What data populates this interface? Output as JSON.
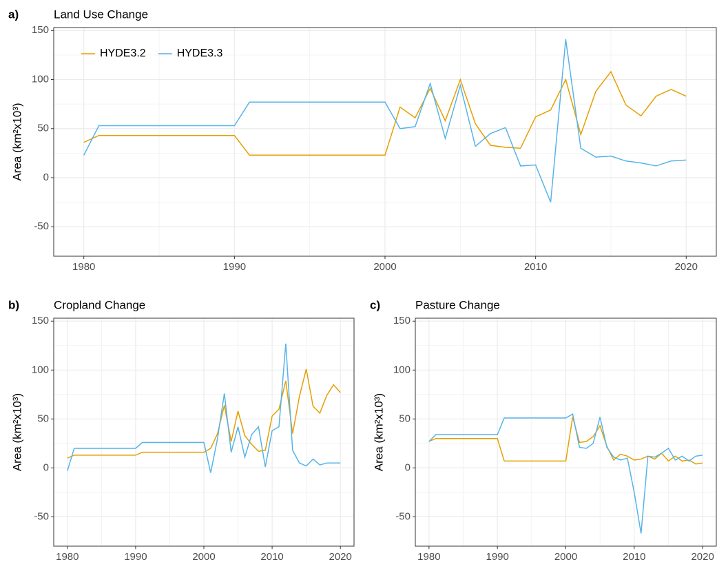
{
  "chart_data": [
    {
      "type": "line",
      "panel_label": "a)",
      "title": "Land Use Change",
      "ylabel": "Area (km²x10³)",
      "x": [
        1980,
        1981,
        1982,
        1983,
        1984,
        1985,
        1986,
        1987,
        1988,
        1989,
        1990,
        1991,
        1992,
        1993,
        1994,
        1995,
        1996,
        1997,
        1998,
        1999,
        2000,
        2001,
        2002,
        2003,
        2004,
        2005,
        2006,
        2007,
        2008,
        2009,
        2010,
        2011,
        2012,
        2013,
        2014,
        2015,
        2016,
        2017,
        2018,
        2019,
        2020
      ],
      "series": [
        {
          "name": "HYDE3.2",
          "color": "#E69F00",
          "values": [
            36,
            43,
            43,
            43,
            43,
            43,
            43,
            43,
            43,
            43,
            43,
            23,
            23,
            23,
            23,
            23,
            23,
            23,
            23,
            23,
            23,
            72,
            61,
            91,
            58,
            100,
            55,
            33,
            31,
            30,
            62,
            69,
            100,
            44,
            88,
            108,
            74,
            63,
            83,
            90,
            83
          ]
        },
        {
          "name": "HYDE3.3",
          "color": "#56B4E9",
          "values": [
            23,
            53,
            53,
            53,
            53,
            53,
            53,
            53,
            53,
            53,
            53,
            77,
            77,
            77,
            77,
            77,
            77,
            77,
            77,
            77,
            77,
            50,
            52,
            96,
            40,
            94,
            32,
            45,
            51,
            12,
            13,
            -25,
            141,
            30,
            21,
            22,
            17,
            15,
            12,
            17,
            18
          ]
        }
      ],
      "xlim": [
        1978,
        2022
      ],
      "xticks": [
        1980,
        1990,
        2000,
        2010,
        2020
      ],
      "ylim": [
        -80,
        153
      ],
      "yticks": [
        -50,
        0,
        50,
        100,
        150
      ],
      "grid": true,
      "legend": "top-left"
    },
    {
      "type": "line",
      "panel_label": "b)",
      "title": "Cropland Change",
      "ylabel": "Area (km²x10³)",
      "x": [
        1980,
        1981,
        1982,
        1983,
        1984,
        1985,
        1986,
        1987,
        1988,
        1989,
        1990,
        1991,
        1992,
        1993,
        1994,
        1995,
        1996,
        1997,
        1998,
        1999,
        2000,
        2001,
        2002,
        2003,
        2004,
        2005,
        2006,
        2007,
        2008,
        2009,
        2010,
        2011,
        2012,
        2013,
        2014,
        2015,
        2016,
        2017,
        2018,
        2019,
        2020
      ],
      "series": [
        {
          "color": "#E69F00",
          "values": [
            10,
            13,
            13,
            13,
            13,
            13,
            13,
            13,
            13,
            13,
            13,
            16,
            16,
            16,
            16,
            16,
            16,
            16,
            16,
            16,
            16,
            20,
            35,
            64,
            27,
            58,
            33,
            24,
            17,
            18,
            53,
            60,
            89,
            35,
            73,
            101,
            63,
            56,
            74,
            85,
            77
          ]
        },
        {
          "color": "#56B4E9",
          "values": [
            -3,
            20,
            20,
            20,
            20,
            20,
            20,
            20,
            20,
            20,
            20,
            26,
            26,
            26,
            26,
            26,
            26,
            26,
            26,
            26,
            26,
            -5,
            30,
            76,
            16,
            42,
            11,
            34,
            42,
            1,
            38,
            42,
            127,
            18,
            5,
            2,
            9,
            3,
            5,
            5,
            5
          ]
        }
      ],
      "xlim": [
        1978,
        2022
      ],
      "xticks": [
        1980,
        1990,
        2000,
        2010,
        2020
      ],
      "ylim": [
        -80,
        153
      ],
      "yticks": [
        -50,
        0,
        50,
        100,
        150
      ],
      "grid": true
    },
    {
      "type": "line",
      "panel_label": "c)",
      "title": "Pasture Change",
      "ylabel": "Area (km²x10³)",
      "x": [
        1980,
        1981,
        1982,
        1983,
        1984,
        1985,
        1986,
        1987,
        1988,
        1989,
        1990,
        1991,
        1992,
        1993,
        1994,
        1995,
        1996,
        1997,
        1998,
        1999,
        2000,
        2001,
        2002,
        2003,
        2004,
        2005,
        2006,
        2007,
        2008,
        2009,
        2010,
        2011,
        2012,
        2013,
        2014,
        2015,
        2016,
        2017,
        2018,
        2019,
        2020
      ],
      "series": [
        {
          "color": "#E69F00",
          "values": [
            27,
            30,
            30,
            30,
            30,
            30,
            30,
            30,
            30,
            30,
            30,
            7,
            7,
            7,
            7,
            7,
            7,
            7,
            7,
            7,
            7,
            52,
            26,
            27,
            32,
            43,
            22,
            8,
            14,
            12,
            8,
            9,
            12,
            9,
            15,
            7,
            12,
            7,
            8,
            4,
            5
          ]
        },
        {
          "color": "#56B4E9",
          "values": [
            27,
            34,
            34,
            34,
            34,
            34,
            34,
            34,
            34,
            34,
            34,
            51,
            51,
            51,
            51,
            51,
            51,
            51,
            51,
            51,
            51,
            55,
            21,
            20,
            25,
            52,
            21,
            11,
            8,
            10,
            -25,
            -67,
            12,
            11,
            15,
            20,
            8,
            12,
            7,
            12,
            13
          ]
        }
      ],
      "xlim": [
        1978,
        2022
      ],
      "xticks": [
        1980,
        1990,
        2000,
        2010,
        2020
      ],
      "ylim": [
        -80,
        153
      ],
      "yticks": [
        -50,
        0,
        50,
        100,
        150
      ],
      "grid": true
    }
  ]
}
